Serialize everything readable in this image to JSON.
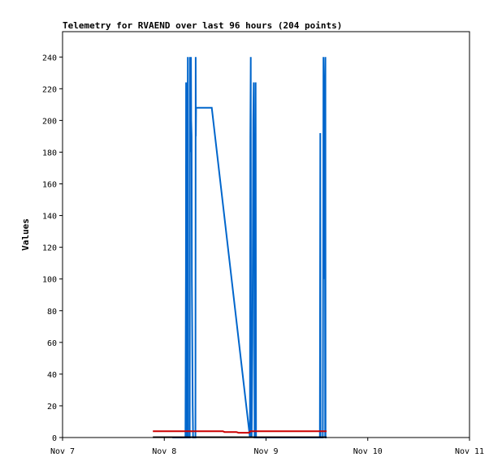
{
  "chart_data": {
    "type": "line",
    "title": "Telemetry for RVAEND over last 96 hours (204 points)",
    "xlabel": "",
    "ylabel": "Values",
    "x_ticks": [
      "Nov 7",
      "Nov 8",
      "Nov 9",
      "Nov 10",
      "Nov 11"
    ],
    "xlim": [
      0,
      96
    ],
    "ylim": [
      0,
      256
    ],
    "y_ticks": [
      0,
      20,
      40,
      60,
      80,
      100,
      120,
      140,
      160,
      180,
      200,
      220,
      240
    ],
    "grid": false,
    "legend": "none",
    "series": [
      {
        "color": "#0066cc",
        "points": [
          [
            25.9,
            0
          ],
          [
            29.0,
            0
          ],
          [
            29.1,
            104
          ],
          [
            29.15,
            224
          ],
          [
            29.25,
            0
          ],
          [
            29.4,
            0
          ],
          [
            29.45,
            112
          ],
          [
            29.55,
            240
          ],
          [
            29.6,
            0
          ],
          [
            29.8,
            0
          ],
          [
            30.0,
            0
          ],
          [
            30.05,
            240
          ],
          [
            30.15,
            180
          ],
          [
            30.2,
            224
          ],
          [
            30.3,
            240
          ],
          [
            30.35,
            200
          ],
          [
            30.45,
            190
          ],
          [
            30.5,
            100
          ],
          [
            30.7,
            20
          ],
          [
            30.8,
            0
          ],
          [
            31.3,
            0
          ],
          [
            31.35,
            0
          ],
          [
            31.4,
            240
          ],
          [
            31.45,
            190
          ],
          [
            31.5,
            208
          ],
          [
            35.2,
            208
          ],
          [
            44.2,
            0
          ],
          [
            44.3,
            190
          ],
          [
            44.4,
            240
          ],
          [
            44.45,
            30
          ],
          [
            44.6,
            0
          ],
          [
            44.8,
            60
          ],
          [
            45.0,
            200
          ],
          [
            45.1,
            224
          ],
          [
            45.25,
            120
          ],
          [
            45.3,
            0
          ],
          [
            45.45,
            0
          ],
          [
            45.55,
            224
          ],
          [
            45.65,
            0
          ],
          [
            47.0,
            0
          ],
          [
            60.7,
            0
          ],
          [
            60.8,
            192
          ],
          [
            60.85,
            0
          ],
          [
            61.4,
            0
          ],
          [
            61.5,
            150
          ],
          [
            61.55,
            240
          ],
          [
            61.65,
            224
          ],
          [
            61.75,
            180
          ],
          [
            61.85,
            100
          ],
          [
            61.9,
            200
          ],
          [
            61.95,
            0
          ],
          [
            62.0,
            240
          ],
          [
            62.05,
            0
          ],
          [
            62.3,
            0
          ]
        ]
      },
      {
        "color": "#cc0000",
        "points": [
          [
            21.3,
            4
          ],
          [
            37.8,
            4
          ],
          [
            38.2,
            3.5
          ],
          [
            41.0,
            3.5
          ],
          [
            41.5,
            3
          ],
          [
            44.0,
            3
          ],
          [
            44.3,
            4
          ],
          [
            62.3,
            4
          ]
        ]
      },
      {
        "color": "#000000",
        "points": [
          [
            21.3,
            0.2
          ],
          [
            62.3,
            0.2
          ]
        ]
      }
    ]
  }
}
